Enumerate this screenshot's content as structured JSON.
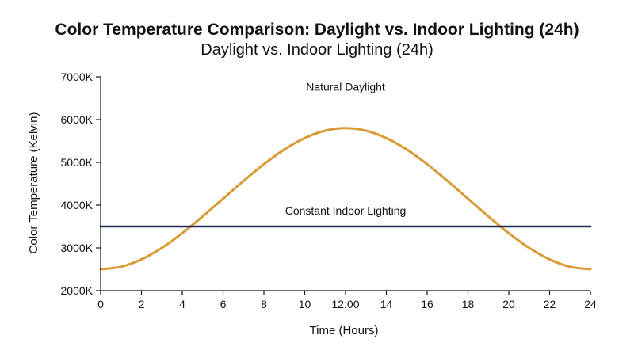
{
  "chart_data": {
    "type": "line",
    "title": "Color Temperature Comparison: Daylight vs. Indoor Lighting (24h)",
    "subtitle": "Daylight vs. Indoor Lighting (24h)",
    "xlabel": "Time (Hours)",
    "ylabel": "Color Temperature (Kelvin)",
    "xlim": [
      0,
      24
    ],
    "ylim": [
      2000,
      7000
    ],
    "x_ticks": [
      {
        "value": 0,
        "label": "0"
      },
      {
        "value": 2,
        "label": "2"
      },
      {
        "value": 4,
        "label": "4"
      },
      {
        "value": 6,
        "label": "6"
      },
      {
        "value": 8,
        "label": "8"
      },
      {
        "value": 10,
        "label": "10"
      },
      {
        "value": 12,
        "label": "12:00"
      },
      {
        "value": 14,
        "label": "14"
      },
      {
        "value": 16,
        "label": "16"
      },
      {
        "value": 18,
        "label": "18"
      },
      {
        "value": 20,
        "label": "20"
      },
      {
        "value": 22,
        "label": "22"
      },
      {
        "value": 24,
        "label": "24"
      }
    ],
    "y_ticks": [
      {
        "value": 2000,
        "label": "2000K"
      },
      {
        "value": 3000,
        "label": "3000K"
      },
      {
        "value": 4000,
        "label": "4000K"
      },
      {
        "value": 5000,
        "label": "5000K"
      },
      {
        "value": 6000,
        "label": "6000K"
      },
      {
        "value": 7000,
        "label": "7000K"
      }
    ],
    "grid": false,
    "legend": "none",
    "series": [
      {
        "name": "Natural Daylight",
        "color": "#d99a36",
        "x": [
          0,
          1,
          2,
          3,
          4,
          5,
          6,
          7,
          8,
          9,
          10,
          11,
          12,
          13,
          14,
          15,
          16,
          17,
          18,
          19,
          20,
          21,
          22,
          23,
          24
        ],
        "y": [
          2500,
          2559,
          2732,
          3000,
          3343,
          3736,
          4150,
          4564,
          4957,
          5300,
          5568,
          5741,
          5800,
          5741,
          5568,
          5300,
          4957,
          4564,
          4150,
          3736,
          3343,
          3000,
          2732,
          2559,
          2500
        ],
        "label_x": 12,
        "label_y": 6680
      },
      {
        "name": "Constant Indoor Lighting",
        "color": "#1f2a55",
        "x": [
          0,
          24
        ],
        "y": [
          3500,
          3500
        ],
        "label_x": 12,
        "label_y": 3780
      }
    ]
  }
}
